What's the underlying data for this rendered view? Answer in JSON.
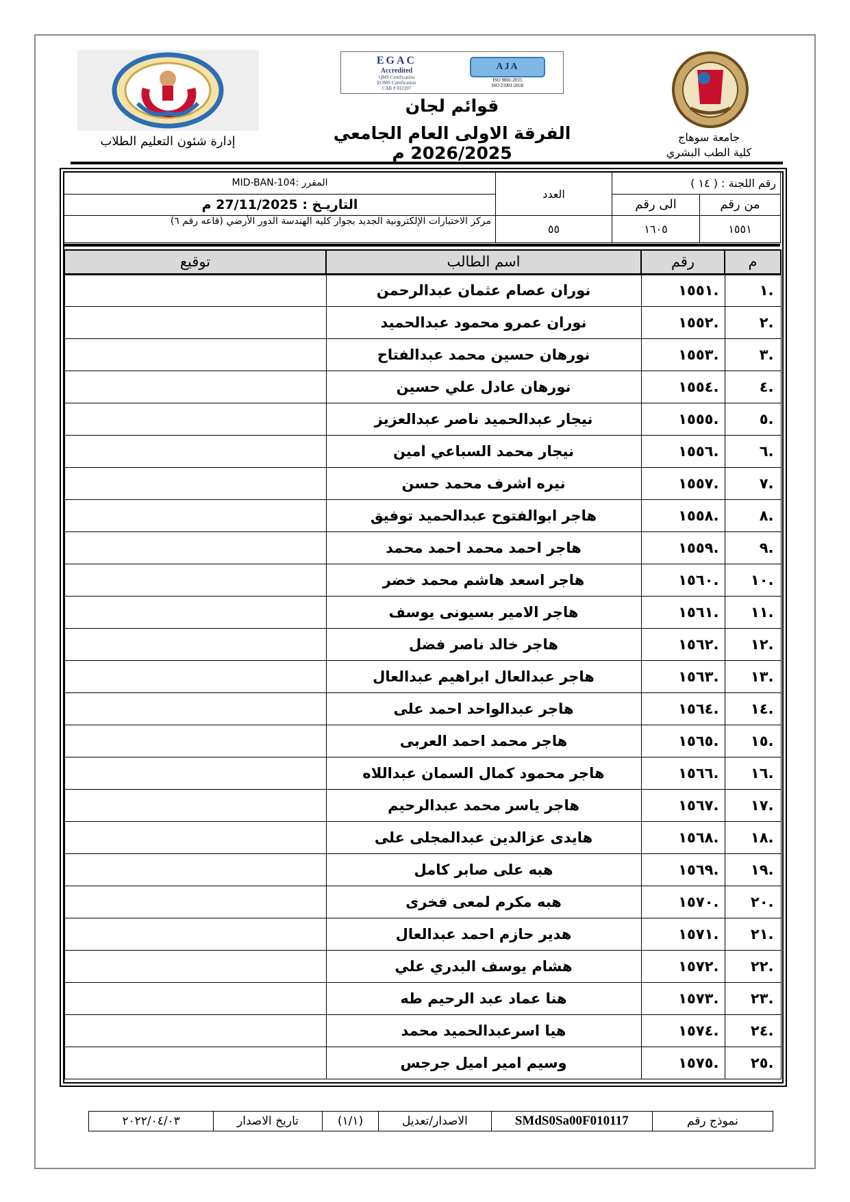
{
  "header": {
    "title": "قوائم لجان",
    "subtitle": "الفرقة الاولى العام الجامعي 2026/2025 م",
    "department": "إدارة شئون التعليم الطلاب",
    "university": "جامعة سوهاج",
    "faculty": "كلية الطب البشري",
    "accreditation": {
      "egac_name": "EGAC",
      "egac_status": "Accredited",
      "egac_lines": [
        "QMS Certification",
        "EOMS Certification",
        "CAB # 012207"
      ],
      "aja_name": "AJA",
      "aja_lines": [
        "ISO 9001:2015",
        "ISO 21001:2018"
      ]
    }
  },
  "info": {
    "committee_label": "رقم اللجنة : ( ١٤ )",
    "count_label": "العدد",
    "course_label": "المقرر :MID-BAN-104",
    "from_label": "من رقم",
    "to_label": "الى رقم",
    "date_label": "التاريـخ : 27/11/2025 م",
    "from_value": "١٥٥١",
    "to_value": "١٦٠٥",
    "count_value": "٥٥",
    "location": "مركز الاختبارات الإلكترونية الجديد بجوار كليه الهندسة الدور الأرضي (قاعه رقم ٦)"
  },
  "table": {
    "headers": {
      "idx": "م",
      "number": "رقم",
      "name": "اسم الطالب",
      "signature": "توقيع"
    },
    "rows": [
      {
        "idx": ".١",
        "number": ".١٥٥١",
        "name": "نوران عصام عثمان عبدالرحمن"
      },
      {
        "idx": ".٢",
        "number": ".١٥٥٢",
        "name": "نوران عمرو محمود عبدالحميد"
      },
      {
        "idx": ".٣",
        "number": ".١٥٥٣",
        "name": "نورهان حسين محمد عبدالفتاح"
      },
      {
        "idx": ".٤",
        "number": ".١٥٥٤",
        "name": "نورهان عادل علي حسين"
      },
      {
        "idx": ".٥",
        "number": ".١٥٥٥",
        "name": "نيجار عبدالحميد ناصر عبدالعزيز"
      },
      {
        "idx": ".٦",
        "number": ".١٥٥٦",
        "name": "نيجار محمد السباعي امين"
      },
      {
        "idx": ".٧",
        "number": ".١٥٥٧",
        "name": "نيره اشرف محمد حسن"
      },
      {
        "idx": ".٨",
        "number": ".١٥٥٨",
        "name": "هاجر ابوالفتوح عبدالحميد توفيق"
      },
      {
        "idx": ".٩",
        "number": ".١٥٥٩",
        "name": "هاجر احمد محمد احمد محمد"
      },
      {
        "idx": ".١٠",
        "number": ".١٥٦٠",
        "name": "هاجر اسعد هاشم محمد خضر"
      },
      {
        "idx": ".١١",
        "number": ".١٥٦١",
        "name": "هاجر الامير بسيونى يوسف"
      },
      {
        "idx": ".١٢",
        "number": ".١٥٦٢",
        "name": "هاجر خالد ناصر فضل"
      },
      {
        "idx": ".١٣",
        "number": ".١٥٦٣",
        "name": "هاجر عبدالعال ابراهيم عبدالعال"
      },
      {
        "idx": ".١٤",
        "number": ".١٥٦٤",
        "name": "هاجر عبدالواحد احمد على"
      },
      {
        "idx": ".١٥",
        "number": ".١٥٦٥",
        "name": "هاجر محمد احمد العربى"
      },
      {
        "idx": ".١٦",
        "number": ".١٥٦٦",
        "name": "هاجر محمود كمال السمان عبداللاه"
      },
      {
        "idx": ".١٧",
        "number": ".١٥٦٧",
        "name": "هاجر ياسر محمد عبدالرحيم"
      },
      {
        "idx": ".١٨",
        "number": ".١٥٦٨",
        "name": "هايدى عزالدين عبدالمجلى على"
      },
      {
        "idx": ".١٩",
        "number": ".١٥٦٩",
        "name": "هبه على صابر كامل"
      },
      {
        "idx": ".٢٠",
        "number": ".١٥٧٠",
        "name": "هبه مكرم لمعى فخرى"
      },
      {
        "idx": ".٢١",
        "number": ".١٥٧١",
        "name": "هدير حازم احمد عبدالعال"
      },
      {
        "idx": ".٢٢",
        "number": ".١٥٧٢",
        "name": "هشام يوسف البدري علي"
      },
      {
        "idx": ".٢٣",
        "number": ".١٥٧٣",
        "name": "هنا عماد عبد الرحيم طه"
      },
      {
        "idx": ".٢٤",
        "number": ".١٥٧٤",
        "name": "هيا اسرعبدالحميد محمد"
      },
      {
        "idx": ".٢٥",
        "number": ".١٥٧٥",
        "name": "وسيم امير اميل جرجس"
      }
    ]
  },
  "footer": {
    "form_label": "نموذج رقم",
    "form_code": "SMdS0Sa00F010117",
    "version_label": "الاصدار/تعديل",
    "version_value": "(١/١)",
    "issue_date_label": "تاريخ الاصدار",
    "issue_date_value": "٢٠٢٢/٠٤/٠٣"
  },
  "colors": {
    "header_fill": "#d9d9d9",
    "logo_red": "#c8102e",
    "logo_blue": "#2e6db4"
  }
}
